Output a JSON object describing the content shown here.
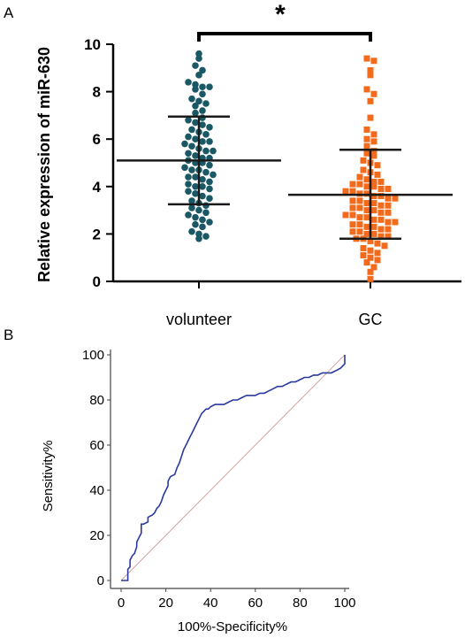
{
  "chart_data": [
    {
      "panel": "A",
      "type": "scatter",
      "xlabel": "",
      "ylabel": "Relative expression of miR-630",
      "ylim": [
        0,
        10
      ],
      "yticks": [
        0,
        2,
        4,
        6,
        8,
        10
      ],
      "categories": [
        "volunteer",
        "GC"
      ],
      "significance_marker": "*",
      "series": [
        {
          "category": "volunteer",
          "color": "#1a5866",
          "marker": "circle",
          "mean": 5.1,
          "sd_low": 3.25,
          "sd_high": 6.95,
          "values": [
            9.6,
            9.4,
            9.1,
            8.9,
            8.7,
            8.4,
            8.3,
            8.2,
            8.2,
            8.1,
            7.9,
            7.7,
            7.6,
            7.5,
            7.4,
            7.2,
            7.1,
            6.9,
            6.8,
            6.7,
            6.6,
            6.5,
            6.4,
            6.3,
            6.2,
            6.1,
            6.0,
            5.9,
            5.9,
            5.8,
            5.7,
            5.6,
            5.5,
            5.5,
            5.4,
            5.3,
            5.2,
            5.2,
            5.1,
            5.0,
            5.0,
            4.9,
            4.8,
            4.7,
            4.7,
            4.6,
            4.5,
            4.4,
            4.4,
            4.3,
            4.2,
            4.1,
            4.0,
            4.0,
            3.9,
            3.8,
            3.7,
            3.6,
            3.5,
            3.4,
            3.3,
            3.2,
            3.1,
            3.0,
            2.9,
            2.8,
            2.7,
            2.6,
            2.5,
            2.4,
            2.3,
            2.1,
            2.0,
            1.9,
            1.8
          ]
        },
        {
          "category": "GC",
          "color": "#f26b1d",
          "marker": "square",
          "mean": 3.65,
          "sd_low": 1.8,
          "sd_high": 5.55,
          "values": [
            9.4,
            9.3,
            8.9,
            8.7,
            8.1,
            7.9,
            7.6,
            6.9,
            6.4,
            6.2,
            6.0,
            5.9,
            5.7,
            5.5,
            5.4,
            5.3,
            5.1,
            5.0,
            4.9,
            4.7,
            4.6,
            4.5,
            4.4,
            4.3,
            4.2,
            4.2,
            4.1,
            4.1,
            4.0,
            4.0,
            3.9,
            3.9,
            3.8,
            3.8,
            3.7,
            3.7,
            3.6,
            3.6,
            3.5,
            3.5,
            3.4,
            3.4,
            3.3,
            3.3,
            3.2,
            3.2,
            3.1,
            3.1,
            3.0,
            3.0,
            2.9,
            2.9,
            2.8,
            2.8,
            2.7,
            2.7,
            2.6,
            2.6,
            2.5,
            2.5,
            2.4,
            2.4,
            2.3,
            2.3,
            2.2,
            2.2,
            2.1,
            2.1,
            2.0,
            2.0,
            1.9,
            1.9,
            1.8,
            1.8,
            1.7,
            1.6,
            1.5,
            1.4,
            1.3,
            1.2,
            1.1,
            1.0,
            0.9,
            0.8,
            0.6,
            0.4,
            0.1
          ]
        }
      ]
    },
    {
      "panel": "B",
      "type": "line",
      "xlabel": "100%-Specificity%",
      "ylabel": "Sensitivity%",
      "xlim": [
        0,
        100
      ],
      "ylim": [
        0,
        100
      ],
      "xticks": [
        0,
        20,
        40,
        60,
        80,
        100
      ],
      "yticks": [
        0,
        20,
        40,
        60,
        80,
        100
      ],
      "series": [
        {
          "name": "",
          "color": "#2b3a9e",
          "x": [
            0,
            3,
            3,
            4,
            4,
            5,
            6,
            7,
            7,
            8,
            9,
            9,
            10,
            12,
            12,
            14,
            15,
            16,
            17,
            18,
            19,
            20,
            21,
            21,
            22,
            24,
            25,
            26,
            27,
            28,
            29,
            30,
            31,
            32,
            33,
            34,
            35,
            36,
            37,
            38,
            39,
            40,
            42,
            44,
            46,
            48,
            50,
            52,
            54,
            56,
            58,
            60,
            62,
            64,
            66,
            68,
            70,
            72,
            74,
            76,
            78,
            80,
            82,
            84,
            86,
            88,
            90,
            92,
            94,
            96,
            98,
            100,
            100
          ],
          "y": [
            0,
            0,
            5,
            6,
            9,
            11,
            12,
            15,
            17,
            19,
            21,
            25,
            25,
            26,
            28,
            29,
            30,
            32,
            33,
            35,
            38,
            40,
            42,
            44,
            46,
            47,
            50,
            52,
            55,
            58,
            60,
            62,
            64,
            66,
            68,
            70,
            72,
            74,
            75,
            76,
            76,
            77,
            78,
            78,
            78,
            79,
            80,
            80,
            81,
            82,
            82,
            82,
            83,
            83,
            84,
            85,
            86,
            86,
            87,
            88,
            88,
            89,
            90,
            90,
            91,
            91,
            92,
            92,
            92,
            93,
            94,
            96,
            100
          ]
        },
        {
          "name": "",
          "color": "#d4a0a0",
          "x": [
            0,
            100
          ],
          "y": [
            0,
            100
          ]
        }
      ]
    }
  ],
  "labels": {
    "panel_a": "A",
    "panel_b": "B"
  }
}
